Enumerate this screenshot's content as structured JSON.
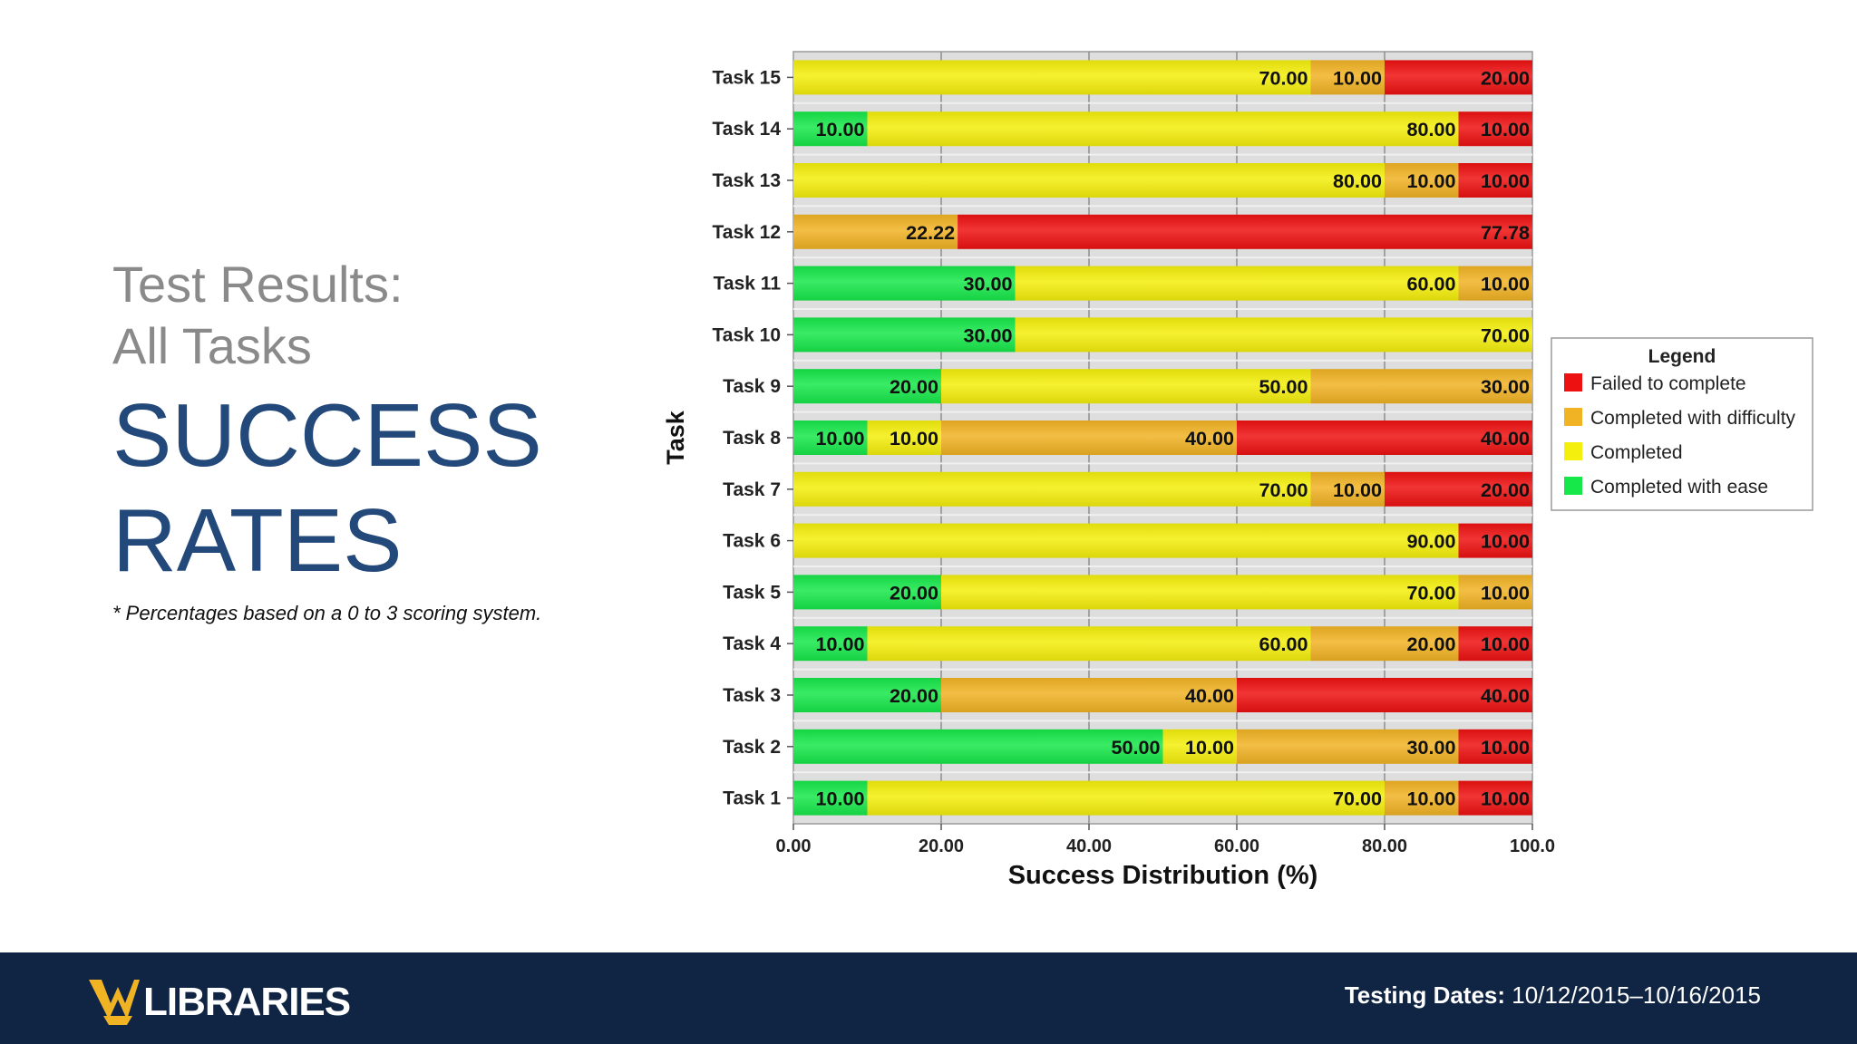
{
  "heading": {
    "line1": "Test Results:",
    "line2": "All Tasks",
    "line3": "SUCCESS",
    "line4": "RATES",
    "footnote": "* Percentages based on a 0 to 3 scoring system."
  },
  "footer": {
    "brand": "LIBRARIES",
    "dates_label": "Testing Dates:",
    "dates_value": "10/12/2015–10/16/2015"
  },
  "colors": {
    "failed": "#ee1111",
    "difficulty": "#f1b324",
    "completed": "#f4ef0c",
    "ease": "#17e84a",
    "heading_blue": "#23497a",
    "footer_navy": "#102543",
    "brand_gold": "#f0b323"
  },
  "chart_data": {
    "type": "bar",
    "orientation": "horizontal-stacked",
    "xlabel": "Success Distribution (%)",
    "ylabel": "Task",
    "xlim": [
      0,
      100
    ],
    "xticks": [
      "0.00",
      "20.00",
      "40.00",
      "60.00",
      "80.00",
      "100.0"
    ],
    "legend_title": "Legend",
    "legend_position": "right",
    "legend_order": [
      "Failed to complete",
      "Completed with difficulty",
      "Completed",
      "Completed with ease"
    ],
    "categories": [
      "Task 15",
      "Task 14",
      "Task 13",
      "Task 12",
      "Task 11",
      "Task 10",
      "Task 9",
      "Task 8",
      "Task 7",
      "Task 6",
      "Task 5",
      "Task 4",
      "Task 3",
      "Task 2",
      "Task 1"
    ],
    "series": [
      {
        "name": "Completed with ease",
        "color": "#17e84a",
        "values": [
          0,
          10,
          0,
          0,
          30,
          30,
          20,
          10,
          0,
          0,
          20,
          10,
          20,
          50,
          10
        ],
        "labels": [
          "",
          "10.00",
          "",
          "",
          "30.00",
          "30.00",
          "20.00",
          "10.00",
          "",
          "",
          "20.00",
          "10.00",
          "20.00",
          "50.00",
          "10.00"
        ]
      },
      {
        "name": "Completed",
        "color": "#f4ef0c",
        "values": [
          70,
          80,
          80,
          0,
          60,
          70,
          50,
          10,
          70,
          90,
          70,
          60,
          0,
          10,
          70
        ],
        "labels": [
          "70.00",
          "80.00",
          "80.00",
          "",
          "60.00",
          "70.00",
          "50.00",
          "10.00",
          "70.00",
          "90.00",
          "70.00",
          "60.00",
          "",
          "10.00",
          "70.00"
        ]
      },
      {
        "name": "Completed with difficulty",
        "color": "#f1b324",
        "values": [
          10,
          0,
          10,
          22.22,
          10,
          0,
          30,
          40,
          10,
          0,
          10,
          20,
          40,
          30,
          10
        ],
        "labels": [
          "10.00",
          "",
          "10.00",
          "22.22",
          "10.00",
          "",
          "30.00",
          "40.00",
          "10.00",
          "",
          "10.00",
          "20.00",
          "40.00",
          "30.00",
          "10.00"
        ]
      },
      {
        "name": "Failed to complete",
        "color": "#ee1111",
        "values": [
          20,
          10,
          10,
          77.78,
          0,
          0,
          0,
          40,
          20,
          10,
          0,
          10,
          40,
          10,
          10
        ],
        "labels": [
          "20.00",
          "10.00",
          "10.00",
          "77.78",
          "",
          "",
          "",
          "40.00",
          "20.00",
          "10.00",
          "",
          "10.00",
          "40.00",
          "10.00",
          "10.00"
        ]
      }
    ]
  }
}
